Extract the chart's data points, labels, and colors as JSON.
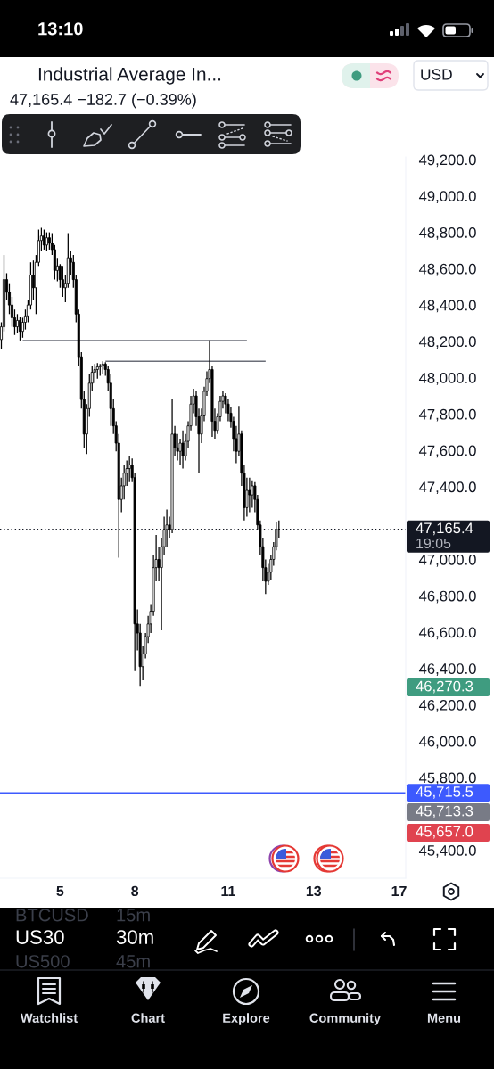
{
  "chart_data": {
    "type": "candlestick",
    "title": "Industrial Average In...",
    "color": "#000000",
    "categories": [
      null,
      null,
      null,
      null,
      null,
      null,
      null,
      null,
      null,
      null,
      null,
      null,
      null,
      null,
      null,
      null,
      null,
      null,
      null,
      null,
      null,
      null,
      "5",
      null,
      null,
      null,
      null,
      null,
      null,
      null,
      null,
      null,
      null,
      null,
      null,
      null,
      null,
      null,
      null,
      null,
      null,
      null,
      null,
      null,
      null,
      null,
      null,
      null,
      null,
      null,
      "8",
      null,
      null,
      null,
      null,
      null,
      null,
      null,
      null,
      null,
      null,
      null,
      null,
      null,
      null,
      null,
      null,
      null,
      null,
      null,
      null,
      null,
      null,
      null,
      null,
      null,
      null,
      null,
      null,
      null,
      null,
      null,
      null,
      null,
      null,
      "11",
      null,
      null,
      null,
      null,
      null,
      null,
      null,
      null,
      null,
      null,
      null,
      null,
      null,
      null,
      null,
      null,
      null,
      null,
      null,
      null,
      null,
      null,
      null,
      null,
      null,
      null,
      null,
      null,
      null,
      null,
      null,
      "13",
      null,
      null,
      null,
      null,
      null,
      null,
      null,
      null,
      null,
      null,
      null,
      null,
      null,
      null,
      null,
      null,
      null,
      null,
      null,
      null,
      null,
      null,
      null,
      null,
      null,
      null,
      null,
      null,
      null,
      null,
      null,
      "17",
      null,
      null
    ],
    "ohlc": [
      [
        48210,
        48305,
        48160,
        48280
      ],
      [
        48280,
        48675,
        48255,
        48540
      ],
      [
        48540,
        48575,
        48425,
        48470
      ],
      [
        48470,
        48520,
        48350,
        48400
      ],
      [
        48400,
        48445,
        48280,
        48330
      ],
      [
        48330,
        48375,
        48235,
        48280
      ],
      [
        48280,
        48350,
        48245,
        48315
      ],
      [
        48315,
        48335,
        48205,
        48255
      ],
      [
        48255,
        48330,
        48220,
        48305
      ],
      [
        48305,
        48375,
        48265,
        48340
      ],
      [
        48340,
        48425,
        48305,
        48400
      ],
      [
        48400,
        48635,
        48375,
        48565
      ],
      [
        48565,
        48645,
        48425,
        48495
      ],
      [
        48495,
        48675,
        48350,
        48635
      ],
      [
        48635,
        48815,
        48615,
        48755
      ],
      [
        48755,
        48825,
        48695,
        48780
      ],
      [
        48780,
        48815,
        48705,
        48730
      ],
      [
        48730,
        48800,
        48695,
        48770
      ],
      [
        48770,
        48800,
        48705,
        48740
      ],
      [
        48740,
        48795,
        48675,
        48705
      ],
      [
        48705,
        48730,
        48540,
        48590
      ],
      [
        48590,
        48660,
        48530,
        48615
      ],
      [
        48615,
        48625,
        48495,
        48540
      ],
      [
        48540,
        48615,
        48445,
        48495
      ],
      [
        48495,
        48565,
        48415,
        48520
      ],
      [
        48520,
        48795,
        48495,
        48660
      ],
      [
        48660,
        48695,
        48565,
        48635
      ],
      [
        48635,
        48675,
        48495,
        48540
      ],
      [
        48540,
        48565,
        48305,
        48350
      ],
      [
        48350,
        48375,
        48065,
        48115
      ],
      [
        48115,
        48140,
        47830,
        47880
      ],
      [
        47880,
        47925,
        47615,
        47690
      ],
      [
        47690,
        47855,
        47580,
        47830
      ],
      [
        47830,
        48020,
        47785,
        47970
      ],
      [
        47970,
        48065,
        47925,
        48030
      ],
      [
        48030,
        48075,
        47970,
        48045
      ],
      [
        48045,
        48080,
        47995,
        48060
      ],
      [
        48060,
        48075,
        48010,
        48065
      ],
      [
        48065,
        48090,
        48020,
        48075
      ],
      [
        48075,
        48085,
        48010,
        48045
      ],
      [
        48045,
        48065,
        47925,
        47970
      ],
      [
        47970,
        48020,
        47735,
        47830
      ],
      [
        47830,
        47880,
        47690,
        47735
      ],
      [
        47735,
        47760,
        47595,
        47640
      ],
      [
        47640,
        47690,
        47010,
        47330
      ],
      [
        47330,
        47450,
        47260,
        47405
      ],
      [
        47405,
        47520,
        47330,
        47475
      ],
      [
        47475,
        47545,
        47405,
        47500
      ],
      [
        47500,
        47570,
        47425,
        47520
      ],
      [
        47520,
        47555,
        47425,
        47450
      ],
      [
        47450,
        47475,
        46385,
        46645
      ],
      [
        46645,
        46725,
        46500,
        46595
      ],
      [
        46595,
        46645,
        46305,
        46410
      ],
      [
        46410,
        46525,
        46335,
        46480
      ],
      [
        46480,
        46595,
        46455,
        46575
      ],
      [
        46575,
        46690,
        46540,
        46645
      ],
      [
        46645,
        46750,
        46595,
        46715
      ],
      [
        46715,
        47025,
        46690,
        46955
      ],
      [
        46955,
        47135,
        46880,
        47000
      ],
      [
        47000,
        47070,
        46880,
        46955
      ],
      [
        46955,
        47120,
        46610,
        47070
      ],
      [
        47070,
        47235,
        47025,
        47165
      ],
      [
        47165,
        47275,
        47070,
        47190
      ],
      [
        47190,
        47235,
        47120,
        47165
      ],
      [
        47165,
        47880,
        47145,
        47690
      ],
      [
        47690,
        47735,
        47570,
        47615
      ],
      [
        47615,
        47690,
        47545,
        47595
      ],
      [
        47595,
        47665,
        47520,
        47640
      ],
      [
        47640,
        47710,
        47500,
        47570
      ],
      [
        47570,
        47690,
        47545,
        47650
      ],
      [
        47650,
        47760,
        47615,
        47735
      ],
      [
        47735,
        47900,
        47710,
        47855
      ],
      [
        47855,
        47940,
        47805,
        47900
      ],
      [
        47900,
        47925,
        47735,
        47785
      ],
      [
        47785,
        47830,
        47475,
        47690
      ],
      [
        47690,
        47830,
        47640,
        47790
      ],
      [
        47790,
        47950,
        47760,
        47925
      ],
      [
        47925,
        48035,
        47900,
        47995
      ],
      [
        47995,
        48205,
        47970,
        48045
      ],
      [
        48045,
        48065,
        47675,
        47760
      ],
      [
        47760,
        47830,
        47665,
        47710
      ],
      [
        47710,
        47805,
        47690,
        47785
      ],
      [
        47785,
        47900,
        47760,
        47870
      ],
      [
        47870,
        47925,
        47830,
        47900
      ],
      [
        47900,
        47915,
        47805,
        47855
      ],
      [
        47855,
        47880,
        47760,
        47805
      ],
      [
        47805,
        47840,
        47725,
        47760
      ],
      [
        47760,
        47785,
        47595,
        47665
      ],
      [
        47665,
        47735,
        47530,
        47595
      ],
      [
        47595,
        47845,
        47570,
        47690
      ],
      [
        47690,
        47710,
        47405,
        47475
      ],
      [
        47475,
        47520,
        47215,
        47285
      ],
      [
        47285,
        47450,
        47235,
        47380
      ],
      [
        47380,
        47450,
        47260,
        47355
      ],
      [
        47355,
        47435,
        47285,
        47405
      ],
      [
        47405,
        47425,
        47260,
        47330
      ],
      [
        47330,
        47355,
        47165,
        47190
      ],
      [
        47190,
        47215,
        47025,
        47070
      ],
      [
        47070,
        47120,
        46880,
        46955
      ],
      [
        46955,
        47000,
        46810,
        46880
      ],
      [
        46880,
        46975,
        46860,
        46930
      ],
      [
        46930,
        47025,
        46890,
        47000
      ],
      [
        47000,
        47095,
        46965,
        47070
      ],
      [
        47070,
        47205,
        47050,
        47165
      ],
      [
        47165,
        47215,
        47120,
        47165.4
      ],
      null,
      null,
      null,
      null,
      null,
      null,
      null,
      null,
      null,
      null,
      null,
      null,
      null,
      null,
      null,
      null,
      null,
      null,
      null,
      null,
      null,
      null,
      null,
      null,
      null,
      null,
      null,
      null,
      null,
      null,
      null,
      null,
      null,
      null,
      null,
      null,
      null,
      null,
      null,
      null,
      null,
      null,
      null,
      null,
      null,
      null,
      null
    ],
    "series": [
      {
        "type": "line",
        "color": "#6b6e78",
        "values": [
          null,
          null,
          null,
          null,
          null,
          null,
          null,
          null,
          48205,
          48205,
          48205,
          48205,
          48205,
          48205,
          48205,
          48205,
          48205,
          48205,
          48205,
          48205,
          48205,
          48205,
          48205,
          48205,
          48205,
          48205,
          48205,
          48205,
          48205,
          48205,
          48205,
          48205,
          48205,
          48205,
          48205,
          48205,
          48205,
          48205,
          48205,
          48205,
          48205,
          48205,
          48205,
          48205,
          48205,
          48205,
          48205,
          48205,
          48205,
          48205,
          48205,
          48205,
          48205,
          48205,
          48205,
          48205,
          48205,
          48205,
          48205,
          48205,
          48205,
          48205,
          48205,
          48205,
          48205,
          48205,
          48205,
          48205,
          48205,
          48205,
          48205,
          48205,
          48205,
          48205,
          48205,
          48205,
          48205,
          48205,
          48205,
          48205,
          48205,
          48205,
          48205,
          48205,
          48205,
          48205,
          48205,
          48205,
          48205,
          48205,
          48205,
          48205,
          48205,
          null,
          null,
          null,
          null,
          null,
          null,
          null,
          null,
          null,
          null,
          null,
          null,
          null,
          null,
          null,
          null,
          null,
          null,
          null,
          null,
          null,
          null,
          null,
          null,
          null,
          null,
          null,
          null,
          null,
          null,
          null,
          null,
          null,
          null,
          null,
          null,
          null,
          null,
          null,
          null,
          null,
          null,
          null,
          null,
          null,
          null,
          null,
          null,
          null,
          null,
          null,
          null,
          null,
          null,
          null,
          null,
          null,
          null,
          null
        ]
      },
      {
        "type": "line",
        "color": "#6b6e78",
        "values": [
          null,
          null,
          null,
          null,
          null,
          null,
          null,
          null,
          null,
          null,
          null,
          null,
          null,
          null,
          null,
          null,
          null,
          null,
          null,
          null,
          null,
          null,
          null,
          null,
          null,
          null,
          null,
          null,
          null,
          null,
          null,
          null,
          null,
          null,
          null,
          null,
          null,
          null,
          null,
          48090,
          48090,
          48090,
          48090,
          48090,
          48090,
          48090,
          48090,
          48090,
          48090,
          48090,
          48090,
          48090,
          48090,
          48090,
          48090,
          48090,
          48090,
          48090,
          48090,
          48090,
          48090,
          48090,
          48090,
          48090,
          48090,
          48090,
          48090,
          48090,
          48090,
          48090,
          48090,
          48090,
          48090,
          48090,
          48090,
          48090,
          48090,
          48090,
          48090,
          48090,
          48090,
          48090,
          48090,
          48090,
          48090,
          48090,
          48090,
          48090,
          48090,
          48090,
          48090,
          48090,
          48090,
          48090,
          48090,
          48090,
          48090,
          48090,
          48090,
          48090,
          null,
          null,
          null,
          null,
          null,
          null,
          null,
          null,
          null,
          null,
          null,
          null,
          null,
          null,
          null,
          null,
          null,
          null,
          null,
          null,
          null,
          null,
          null,
          null,
          null,
          null,
          null,
          null,
          null,
          null,
          null,
          null,
          null,
          null,
          null,
          null,
          null,
          null,
          null,
          null,
          null,
          null,
          null,
          null,
          null,
          null,
          null,
          null,
          null,
          null,
          null,
          null
        ]
      }
    ],
    "ylim": [
      45246,
      49215
    ],
    "yticks": [
      {
        "value": 49200,
        "label": "49,200.0"
      },
      {
        "value": 49000,
        "label": "49,000.0"
      },
      {
        "value": 48800,
        "label": "48,800.0"
      },
      {
        "value": 48600,
        "label": "48,600.0"
      },
      {
        "value": 48400,
        "label": "48,400.0"
      },
      {
        "value": 48200,
        "label": "48,200.0"
      },
      {
        "value": 48000,
        "label": "48,000.0"
      },
      {
        "value": 47800,
        "label": "47,800.0"
      },
      {
        "value": 47600,
        "label": "47,600.0"
      },
      {
        "value": 47400,
        "label": "47,400.0"
      },
      {
        "value": 47000,
        "label": "47,000.0"
      },
      {
        "value": 46800,
        "label": "46,800.0"
      },
      {
        "value": 46600,
        "label": "46,600.0"
      },
      {
        "value": 46400,
        "label": "46,400.0"
      },
      {
        "value": 46200,
        "label": "46,200.0"
      },
      {
        "value": 46000,
        "label": "46,000.0"
      },
      {
        "value": 45800,
        "label": "45,800.0"
      },
      {
        "value": 45400,
        "label": "45,400.0"
      }
    ],
    "ref_lines": [
      {
        "axis": "y",
        "value": 47165.4,
        "label": "47,165.4",
        "color": "#131722",
        "line_style": "dotted"
      },
      {
        "axis": "y",
        "value": 45715.5,
        "label": "45,715.5",
        "color": "#3d5afe",
        "line_style": "solid"
      }
    ],
    "annotations": [
      "13:10",
      "47,165.4 −182.7 (−0.39%)",
      "USD",
      "19:05",
      "BTCUSD",
      "15m",
      "US30",
      "30m",
      "US500",
      "45m",
      "Watchlist",
      "Chart",
      "Explore",
      "Community",
      "Menu",
      "46,270.3",
      "45,713.3",
      "45,657.0"
    ]
  }
}
